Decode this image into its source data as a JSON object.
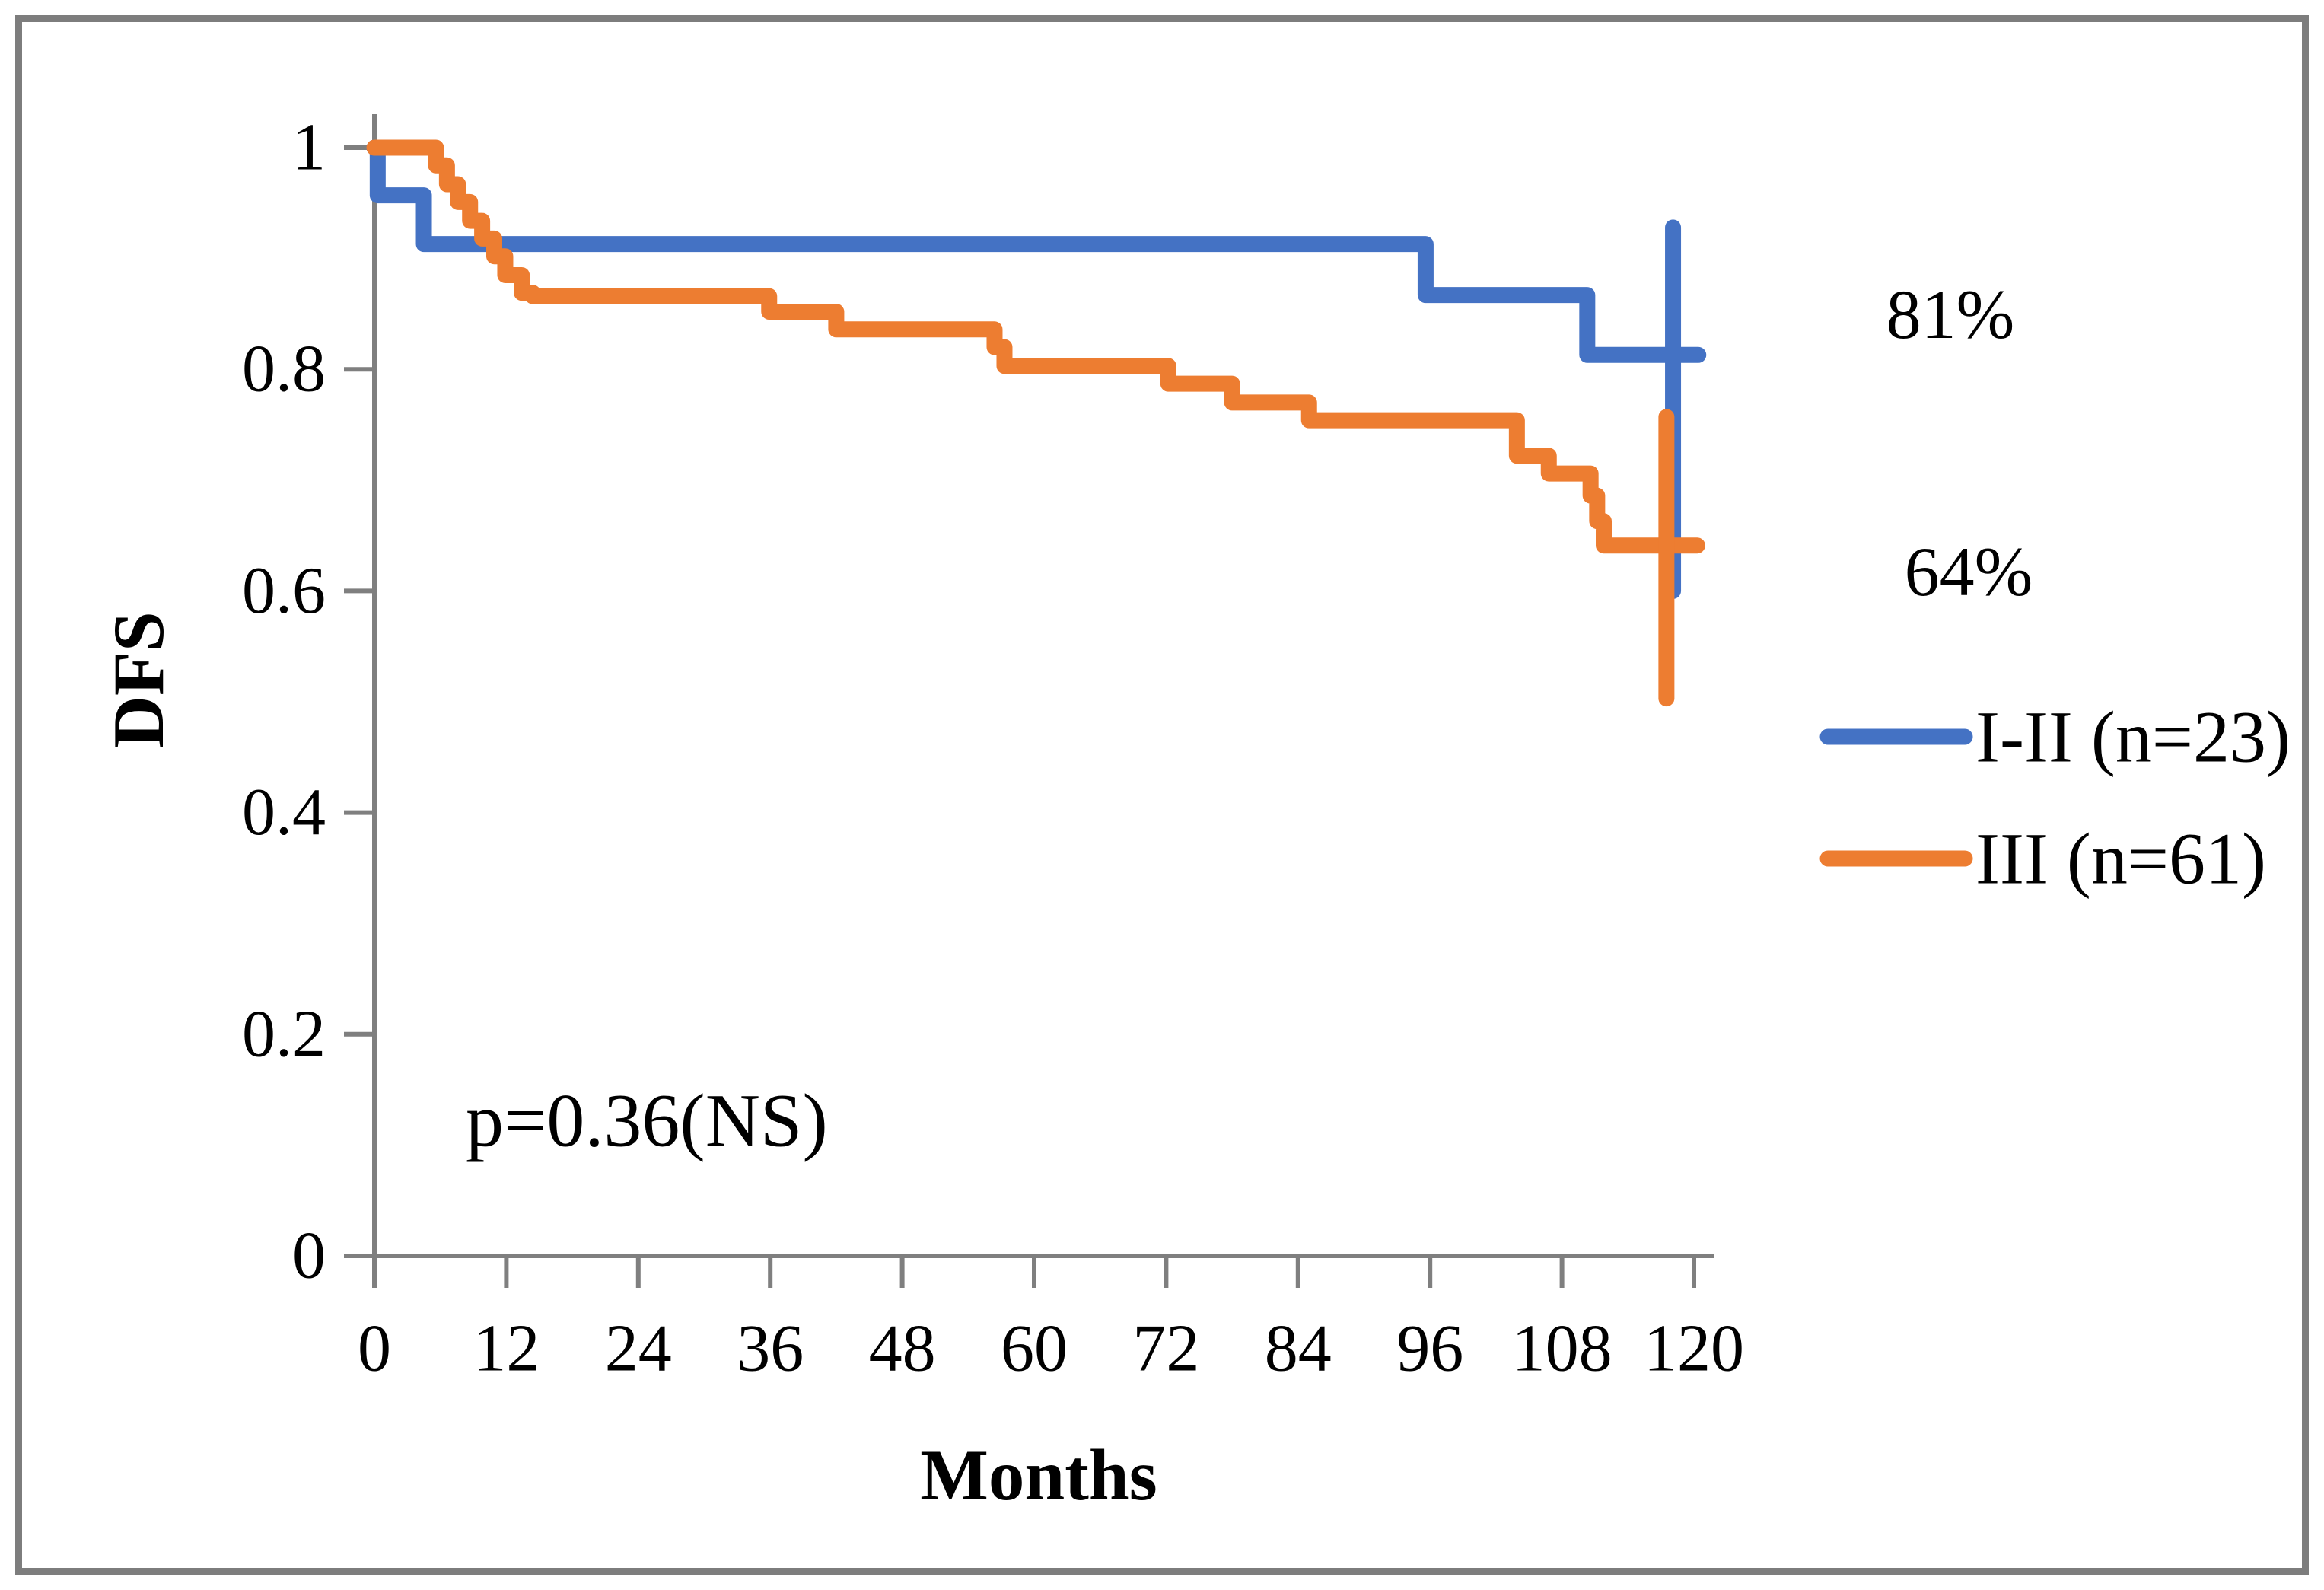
{
  "figure": {
    "background": "#ffffff",
    "border_color": "#7d7d7d",
    "axis_color": "#7f7f7f",
    "text_color": "#000000"
  },
  "chart_data": {
    "type": "line",
    "subtype": "kaplan-meier-step",
    "title": "",
    "xlabel": "Months",
    "ylabel": "DFS",
    "xlim": [
      0,
      120
    ],
    "ylim": [
      0,
      1
    ],
    "grid": false,
    "legend_position": "right",
    "x_ticks": [
      0,
      12,
      24,
      36,
      48,
      60,
      72,
      84,
      96,
      108,
      120
    ],
    "x_tick_labels": [
      "0",
      "12",
      "24",
      "36",
      "48",
      "60",
      "72",
      "84",
      "96",
      "108",
      "120"
    ],
    "y_ticks": [
      0,
      0.2,
      0.4,
      0.6,
      0.8,
      1
    ],
    "y_tick_labels": [
      "0",
      "0.2",
      "0.4",
      "0.6",
      "0.8",
      "1"
    ],
    "series": [
      {
        "name": "I-II (n=23)",
        "color": "#4472C4",
        "steps": [
          [
            0,
            1.0
          ],
          [
            0.3,
            0.957
          ],
          [
            4.5,
            0.913
          ],
          [
            95.6,
            0.867
          ],
          [
            110.3,
            0.813
          ]
        ],
        "end_month": 120.4,
        "final_value": 0.813,
        "final_label": "81%",
        "censor_whisker": {
          "month": 118.1,
          "from": 0.928,
          "to": 0.6
        }
      },
      {
        "name": "III (n=61)",
        "color": "#ED7D31",
        "steps": [
          [
            0,
            1.0
          ],
          [
            5.6,
            0.984
          ],
          [
            6.6,
            0.967
          ],
          [
            7.6,
            0.951
          ],
          [
            8.7,
            0.934
          ],
          [
            9.8,
            0.918
          ],
          [
            10.9,
            0.902
          ],
          [
            11.9,
            0.885
          ],
          [
            13.4,
            0.869
          ],
          [
            14.4,
            0.866
          ],
          [
            35.9,
            0.852
          ],
          [
            42,
            0.836
          ],
          [
            56.4,
            0.82
          ],
          [
            57.3,
            0.803
          ],
          [
            72.2,
            0.787
          ],
          [
            78,
            0.77
          ],
          [
            85,
            0.754
          ],
          [
            103.9,
            0.722
          ],
          [
            106.8,
            0.706
          ],
          [
            110.6,
            0.686
          ],
          [
            111.2,
            0.663
          ],
          [
            111.8,
            0.641
          ]
        ],
        "end_month": 120.3,
        "final_value": 0.641,
        "final_label": "64%",
        "censor_whisker": {
          "month": 117.5,
          "from": 0.757,
          "to": 0.503
        }
      }
    ],
    "annotations": [
      {
        "id": "blue_final_pct",
        "text": "81%"
      },
      {
        "id": "orange_final_pct",
        "text": "64%"
      },
      {
        "id": "p_value",
        "text": "p=0.36(NS)"
      }
    ]
  },
  "axis_titles": {
    "y": "DFS",
    "x": "Months"
  },
  "annotations": {
    "blue_final": "81%",
    "orange_final": "64%",
    "p_value": "p=0.36(NS)"
  },
  "legend": {
    "items": [
      {
        "label": "I-II (n=23)",
        "color": "#4472C4"
      },
      {
        "label": "III (n=61)",
        "color": "#ED7D31"
      }
    ]
  }
}
